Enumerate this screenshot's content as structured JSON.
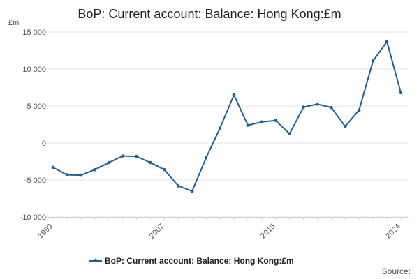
{
  "chart_data": {
    "type": "line",
    "title": "BoP: Current account: Balance: Hong Kong:£m",
    "ylabel": "£m",
    "xlabel": "",
    "x": [
      1999,
      2000,
      2001,
      2002,
      2003,
      2004,
      2005,
      2006,
      2007,
      2008,
      2009,
      2010,
      2011,
      2012,
      2013,
      2014,
      2015,
      2016,
      2017,
      2018,
      2019,
      2020,
      2021,
      2022,
      2023,
      2024
    ],
    "series": [
      {
        "name": "BoP: Current account: Balance: Hong Kong:£m",
        "color": "#206095",
        "values": [
          -3300,
          -4300,
          -4350,
          -3600,
          -2650,
          -1750,
          -1800,
          -2650,
          -3600,
          -5800,
          -6500,
          -2000,
          2000,
          6500,
          2400,
          2850,
          3050,
          1250,
          4850,
          5250,
          4800,
          2250,
          4450,
          11100,
          13700,
          6800
        ]
      }
    ],
    "ylim": [
      -10000,
      15000
    ],
    "yticks": [
      -10000,
      -5000,
      0,
      5000,
      10000,
      15000
    ],
    "ytick_labels": [
      "-10 000",
      "-5 000",
      "0",
      "5 000",
      "10 000",
      "15 000"
    ],
    "xticks": [
      1999,
      2007,
      2015,
      2024
    ],
    "xtick_labels": [
      "1999",
      "2007",
      "2015",
      "2024"
    ],
    "grid": true,
    "legend": "bottom-center"
  },
  "source_label": "Source:"
}
